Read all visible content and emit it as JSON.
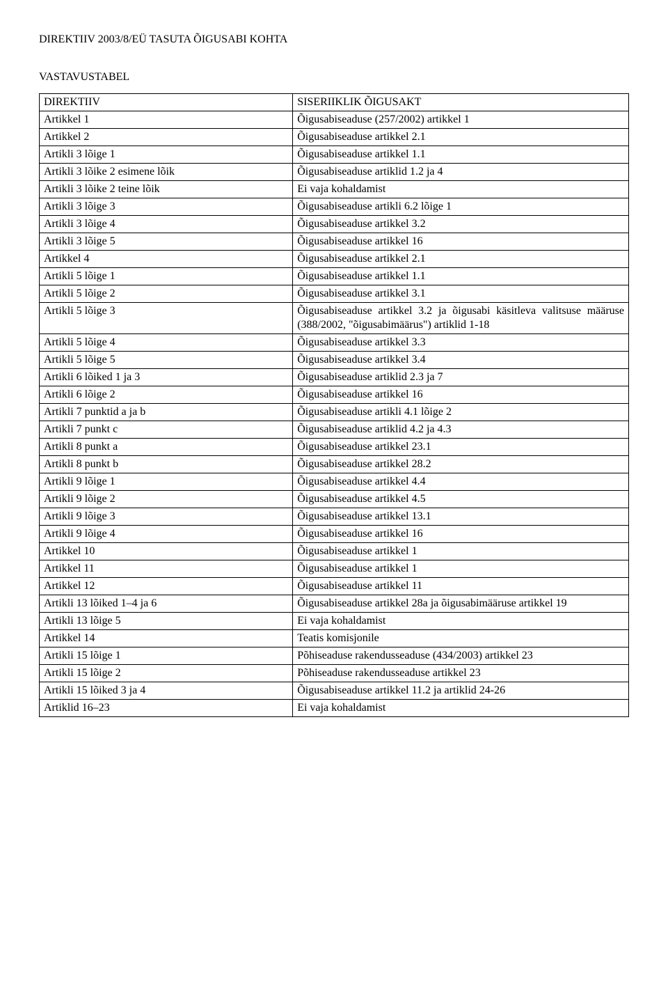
{
  "title": "DIREKTIIV 2003/8/EÜ TASUTA ÕIGUSABI KOHTA",
  "subtitle": "VASTAVUSTABEL",
  "table": {
    "columns": [
      "DIREKTIIV",
      "SISERIIKLIK ÕIGUSAKT"
    ],
    "rows": [
      [
        "Artikkel 1",
        "Õigusabiseaduse (257/2002) artikkel 1"
      ],
      [
        "Artikkel 2",
        "Õigusabiseaduse artikkel 2.1"
      ],
      [
        "Artikli 3 lõige 1",
        "Õigusabiseaduse artikkel 1.1"
      ],
      [
        "Artikli 3 lõike 2 esimene lõik",
        "Õigusabiseaduse artiklid 1.2 ja 4"
      ],
      [
        "Artikli 3 lõike 2 teine lõik",
        "Ei vaja kohaldamist"
      ],
      [
        "Artikli 3 lõige 3",
        "Õigusabiseaduse artikli 6.2 lõige 1"
      ],
      [
        "Artikli 3 lõige 4",
        "Õigusabiseaduse artikkel 3.2"
      ],
      [
        "Artikli 3 lõige 5",
        "Õigusabiseaduse artikkel 16"
      ],
      [
        "Artikkel 4",
        "Õigusabiseaduse artikkel 2.1"
      ],
      [
        "Artikli 5 lõige 1",
        "Õigusabiseaduse artikkel 1.1"
      ],
      [
        "Artikli 5 lõige 2",
        "Õigusabiseaduse artikkel 3.1"
      ],
      [
        "Artikli 5 lõige 3",
        "Õigusabiseaduse artikkel 3.2 ja õigusabi käsitleva valitsuse määruse (388/2002, \"õigusabimäärus\") artiklid 1-18"
      ],
      [
        "Artikli 5 lõige 4",
        "Õigusabiseaduse artikkel 3.3"
      ],
      [
        "Artikli 5 lõige 5",
        "Õigusabiseaduse artikkel 3.4"
      ],
      [
        "Artikli 6 lõiked 1 ja 3",
        "Õigusabiseaduse artiklid 2.3 ja 7"
      ],
      [
        "Artikli 6 lõige 2",
        "Õigusabiseaduse artikkel 16"
      ],
      [
        "Artikli 7 punktid a ja b",
        "Õigusabiseaduse artikli 4.1 lõige 2"
      ],
      [
        "Artikli 7 punkt c",
        "Õigusabiseaduse artiklid 4.2 ja 4.3"
      ],
      [
        "Artikli 8 punkt a",
        "Õigusabiseaduse artikkel 23.1"
      ],
      [
        "Artikli 8 punkt b",
        "Õigusabiseaduse artikkel 28.2"
      ],
      [
        "Artikli 9 lõige 1",
        "Õigusabiseaduse artikkel 4.4"
      ],
      [
        "Artikli 9 lõige 2",
        "Õigusabiseaduse artikkel 4.5"
      ],
      [
        "Artikli 9 lõige 3",
        "Õigusabiseaduse artikkel 13.1"
      ],
      [
        "Artikli 9 lõige 4",
        "Õigusabiseaduse artikkel 16"
      ],
      [
        "Artikkel 10",
        "Õigusabiseaduse artikkel 1"
      ],
      [
        "Artikkel 11",
        "Õigusabiseaduse artikkel 1"
      ],
      [
        "Artikkel 12",
        "Õigusabiseaduse artikkel 11"
      ],
      [
        "Artikli 13 lõiked 1–4 ja 6",
        "Õigusabiseaduse artikkel 28a ja õigusabimääruse artikkel 19"
      ],
      [
        "Artikli 13 lõige 5",
        "Ei vaja kohaldamist"
      ],
      [
        "Artikkel 14",
        "Teatis komisjonile"
      ],
      [
        "Artikli 15 lõige 1",
        "Põhiseaduse rakendusseaduse (434/2003) artikkel 23"
      ],
      [
        "Artikli 15 lõige 2",
        "Põhiseaduse rakendusseaduse artikkel 23"
      ],
      [
        "Artikli 15 lõiked 3 ja 4",
        "Õigusabiseaduse artikkel 11.2 ja artiklid 24-26"
      ],
      [
        "Artiklid 16–23",
        "Ei vaja kohaldamist"
      ]
    ],
    "justify_right_rows": [
      11,
      27,
      30,
      32
    ]
  }
}
